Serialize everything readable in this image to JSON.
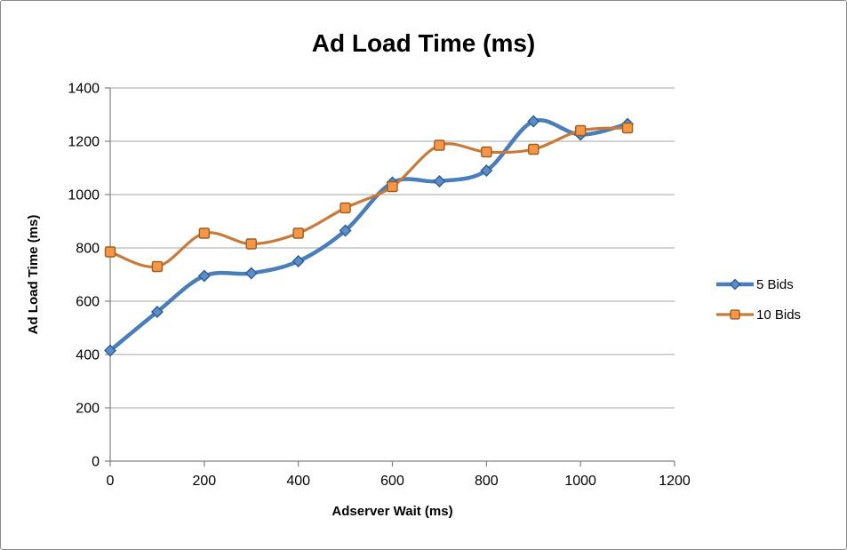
{
  "frame": {
    "background": "#FFFFFF",
    "border_color": "#8A8A8A"
  },
  "chart_data": {
    "type": "line",
    "title": "Ad Load Time (ms)",
    "xlabel": "Adserver Wait (ms)",
    "ylabel": "Ad Load Time (ms)",
    "x": [
      0,
      100,
      200,
      300,
      400,
      500,
      600,
      700,
      800,
      900,
      1000,
      1100
    ],
    "series": [
      {
        "name": "5 Bids",
        "marker": "diamond",
        "values": [
          415,
          560,
          695,
          705,
          750,
          865,
          1045,
          1050,
          1090,
          1275,
          1225,
          1265
        ],
        "line_color": "#4A7EBB",
        "marker_fill": "#5B8DC8",
        "marker_stroke": "#2F5D94",
        "line_width": 4.5
      },
      {
        "name": "10 Bids",
        "marker": "square",
        "values": [
          785,
          730,
          855,
          815,
          855,
          950,
          1030,
          1185,
          1160,
          1170,
          1240,
          1250
        ],
        "line_color": "#C87A38",
        "marker_fill": "#F79646",
        "marker_stroke": "#9A5F21",
        "line_width": 3.2
      }
    ],
    "xlim": [
      0,
      1200
    ],
    "ylim": [
      0,
      1400
    ],
    "xtick_step": 200,
    "ytick_step": 200,
    "grid": "horizontal",
    "smooth": true,
    "legend_position": "right",
    "colors": {
      "grid": "#A3A3A3",
      "axis": "#808080",
      "text": "#000000"
    }
  }
}
